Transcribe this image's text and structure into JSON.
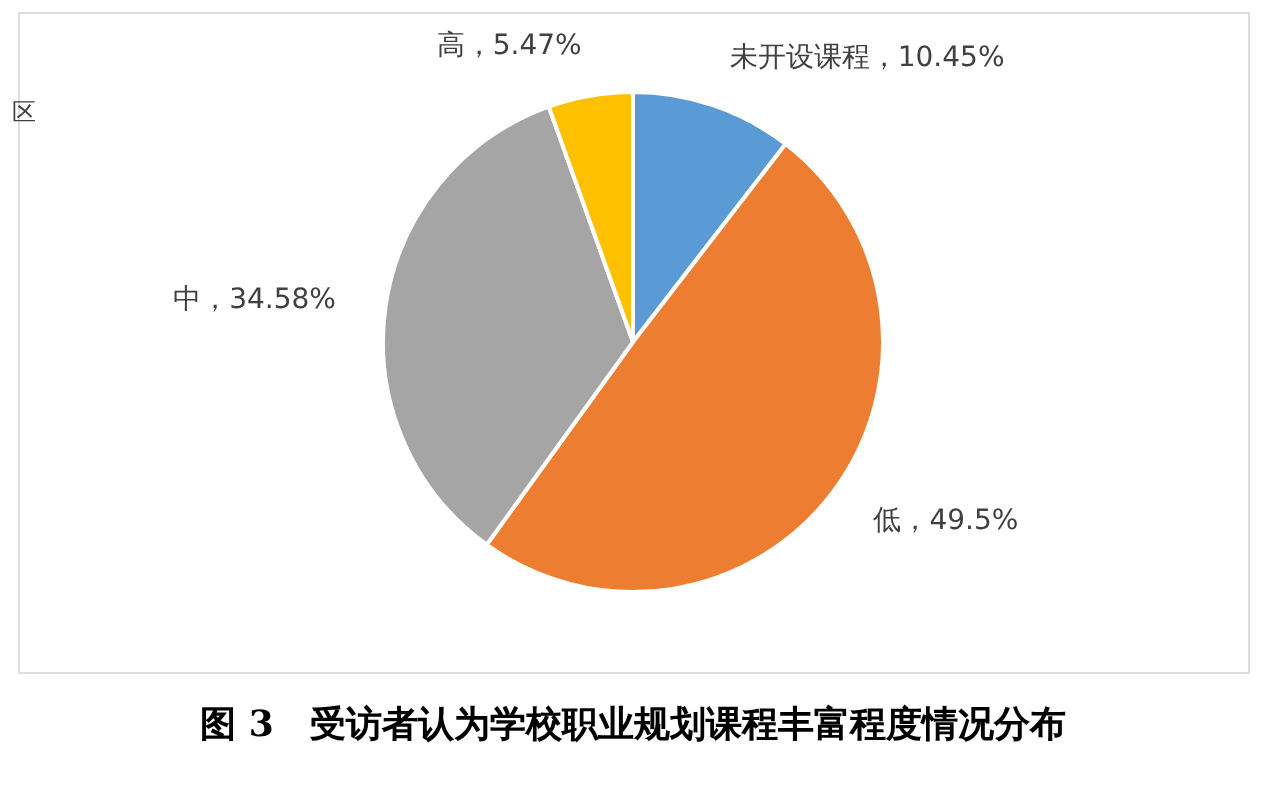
{
  "chart_data": {
    "type": "pie",
    "title": "图 3　受访者认为学校职业规划课程丰富程度情况分布",
    "categories": [
      "未开设课程",
      "低",
      "中",
      "高"
    ],
    "values": [
      10.45,
      49.5,
      34.58,
      5.47
    ],
    "colors": [
      "#5b9bd5",
      "#ed7d31",
      "#a5a5a5",
      "#ffc000"
    ],
    "value_labels": [
      "10.45%",
      "49.5%",
      "34.58%",
      "5.47%"
    ],
    "annotations": [
      "区"
    ],
    "legend": false
  }
}
